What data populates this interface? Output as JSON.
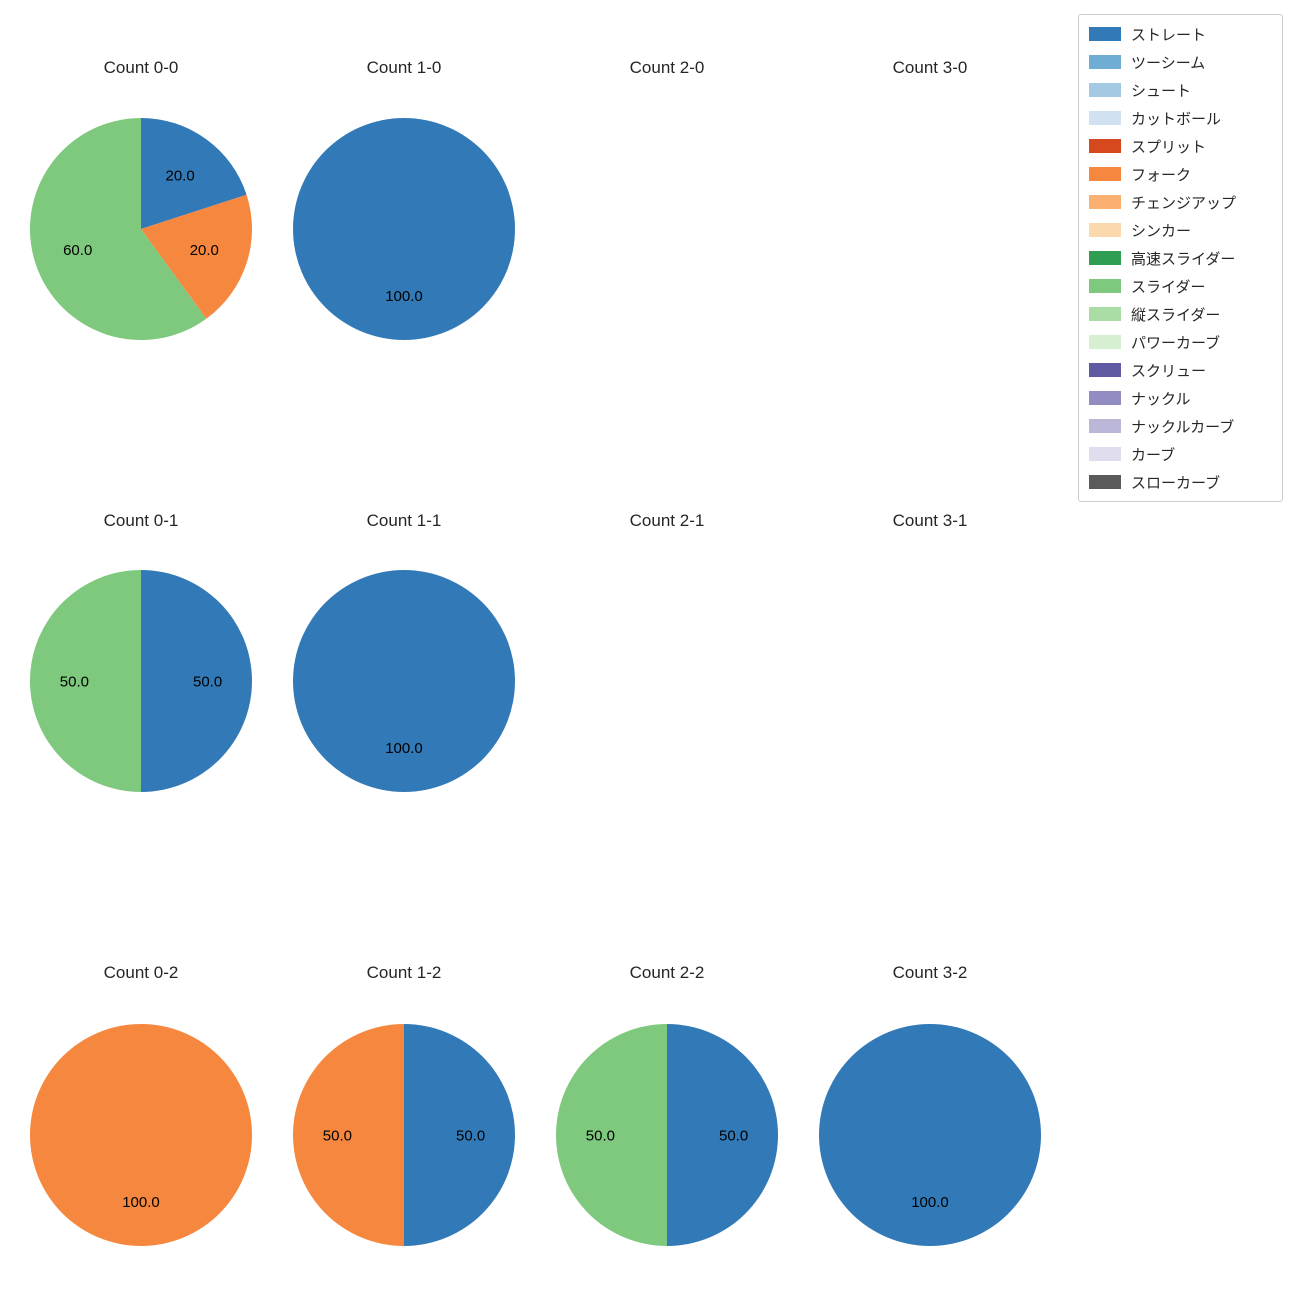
{
  "figure": {
    "background": "#ffffff",
    "text_color": "#262626"
  },
  "chart_data": {
    "type": "pie",
    "title": "",
    "layout_hint": "3 rows x 4 columns of pies, legend box top-right, labels are percentages with one decimal",
    "start_angle": "top",
    "direction": "clockwise",
    "grid": {
      "rows": 3,
      "cols": 4,
      "cells": [
        {
          "title": "Count 0-0",
          "slices": [
            {
              "label": "ストレート",
              "value": 20.0
            },
            {
              "label": "フォーク",
              "value": 20.0
            },
            {
              "label": "スライダー",
              "value": 60.0
            }
          ]
        },
        {
          "title": "Count 1-0",
          "slices": [
            {
              "label": "ストレート",
              "value": 100.0
            }
          ]
        },
        {
          "title": "Count 2-0",
          "slices": []
        },
        {
          "title": "Count 3-0",
          "slices": []
        },
        {
          "title": "Count 0-1",
          "slices": [
            {
              "label": "ストレート",
              "value": 50.0
            },
            {
              "label": "スライダー",
              "value": 50.0
            }
          ]
        },
        {
          "title": "Count 1-1",
          "slices": [
            {
              "label": "ストレート",
              "value": 100.0
            }
          ]
        },
        {
          "title": "Count 2-1",
          "slices": []
        },
        {
          "title": "Count 3-1",
          "slices": []
        },
        {
          "title": "Count 0-2",
          "slices": [
            {
              "label": "フォーク",
              "value": 100.0
            }
          ]
        },
        {
          "title": "Count 1-2",
          "slices": [
            {
              "label": "ストレート",
              "value": 50.0
            },
            {
              "label": "フォーク",
              "value": 50.0
            }
          ]
        },
        {
          "title": "Count 2-2",
          "slices": [
            {
              "label": "ストレート",
              "value": 50.0
            },
            {
              "label": "スライダー",
              "value": 50.0
            }
          ]
        },
        {
          "title": "Count 3-2",
          "slices": [
            {
              "label": "ストレート",
              "value": 100.0
            }
          ]
        }
      ]
    },
    "legend": {
      "position": "top-right",
      "items": [
        {
          "label": "ストレート",
          "color": "#3279b7"
        },
        {
          "label": "ツーシーム",
          "color": "#6fadd4"
        },
        {
          "label": "シュート",
          "color": "#a4c9e3"
        },
        {
          "label": "カットボール",
          "color": "#d2e1f1"
        },
        {
          "label": "スプリット",
          "color": "#d6491f"
        },
        {
          "label": "フォーク",
          "color": "#f6873f"
        },
        {
          "label": "チェンジアップ",
          "color": "#f9b071"
        },
        {
          "label": "シンカー",
          "color": "#fcd8ad"
        },
        {
          "label": "高速スライダー",
          "color": "#2f9e52"
        },
        {
          "label": "スライダー",
          "color": "#7ec97d"
        },
        {
          "label": "縦スライダー",
          "color": "#aadda6"
        },
        {
          "label": "パワーカーブ",
          "color": "#d6efd1"
        },
        {
          "label": "スクリュー",
          "color": "#5f5aa2"
        },
        {
          "label": "ナックル",
          "color": "#918dc2"
        },
        {
          "label": "ナックルカーブ",
          "color": "#bab7d8"
        },
        {
          "label": "カーブ",
          "color": "#e0deee"
        },
        {
          "label": "スローカーブ",
          "color": "#5a5a5a"
        }
      ]
    }
  }
}
